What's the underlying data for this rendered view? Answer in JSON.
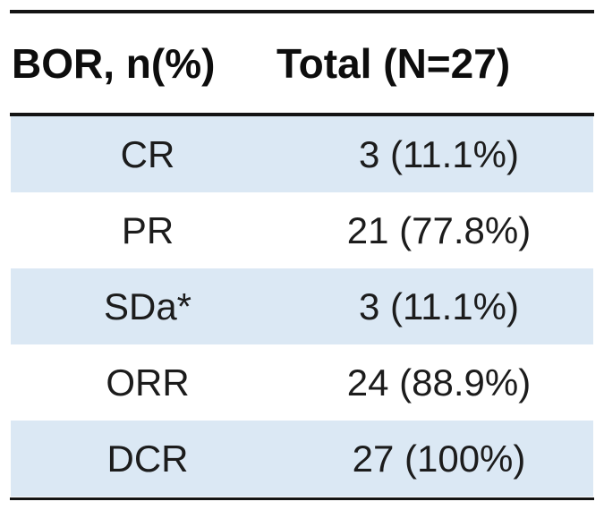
{
  "table": {
    "header": {
      "col1": "BOR, n(%)",
      "col2": "Total (N=27)"
    },
    "rows": [
      {
        "label": "CR",
        "value": "3 (11.1%)"
      },
      {
        "label": "PR",
        "value": "21 (77.8%)"
      },
      {
        "label": "SDa*",
        "value": "3 (11.1%)"
      },
      {
        "label": "ORR",
        "value": "24 (88.9%)"
      },
      {
        "label": "DCR",
        "value": "27 (100%)"
      }
    ],
    "colors": {
      "row_highlight": "#dbe8f4",
      "rule": "#141414",
      "text": "#1c1c1c",
      "background": "#ffffff"
    }
  },
  "chart_data": {
    "type": "table",
    "title": "",
    "columns": [
      "BOR, n(%)",
      "Total (N=27)"
    ],
    "categories": [
      "CR",
      "PR",
      "SDa*",
      "ORR",
      "DCR"
    ],
    "counts": [
      3,
      21,
      3,
      24,
      27
    ],
    "percents": [
      11.1,
      77.8,
      11.1,
      88.9,
      100
    ],
    "cells": [
      [
        "CR",
        "3 (11.1%)"
      ],
      [
        "PR",
        "21 (77.8%)"
      ],
      [
        "SDa*",
        "3 (11.1%)"
      ],
      [
        "ORR",
        "24 (88.9%)"
      ],
      [
        "DCR",
        "27 (100%)"
      ]
    ],
    "n_total": 27,
    "layout": "striped rows (light blue), horizontal black rules top / below header / bottom"
  }
}
